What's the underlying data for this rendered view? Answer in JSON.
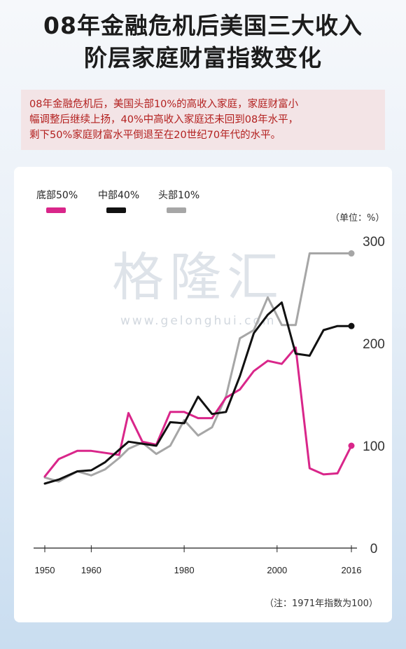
{
  "title_line1": "08年金融危机后美国三大收入",
  "title_line2": "阶层家庭财富指数变化",
  "intro_line1": "08年金融危机后，美国头部10%的高收入家庭，家庭财富小",
  "intro_line2": "幅调整后继续上扬，40%中高收入家庭还未回到08年水平，",
  "intro_line3": "剩下50%家庭财富水平倒退至在20世纪70年代的水平。",
  "unit": "（单位：%）",
  "note": "（注：1971年指数为100）",
  "watermark": "格隆汇",
  "watermark_url": "www.gelonghui.com",
  "chart_data": {
    "type": "line",
    "xlim": [
      1950,
      2016
    ],
    "ylim": [
      0,
      300
    ],
    "x_ticks": [
      1950,
      1960,
      1980,
      2000,
      2016
    ],
    "y_ticks": [
      0,
      100,
      200,
      300
    ],
    "grid": false,
    "legend_position": "top-left",
    "series": [
      {
        "name": "底部50%",
        "color": "#d9268a",
        "x": [
          1950,
          1953,
          1957,
          1960,
          1963,
          1966,
          1968,
          1971,
          1974,
          1977,
          1980,
          1983,
          1986,
          1989,
          1992,
          1995,
          1998,
          2001,
          2004,
          2007,
          2010,
          2013,
          2016
        ],
        "values": [
          70,
          87,
          95,
          95,
          93,
          91,
          132,
          104,
          101,
          133,
          133,
          127,
          127,
          147,
          155,
          173,
          183,
          180,
          196,
          78,
          72,
          73,
          100
        ]
      },
      {
        "name": "中部40%",
        "color": "#111111",
        "x": [
          1950,
          1953,
          1957,
          1960,
          1963,
          1966,
          1968,
          1971,
          1974,
          1977,
          1980,
          1983,
          1986,
          1989,
          1992,
          1995,
          1998,
          2001,
          2004,
          2007,
          2010,
          2013,
          2016
        ],
        "values": [
          63,
          67,
          75,
          76,
          84,
          96,
          104,
          102,
          100,
          123,
          122,
          148,
          131,
          133,
          168,
          210,
          228,
          240,
          190,
          188,
          213,
          217,
          217
        ]
      },
      {
        "name": "头部10%",
        "color": "#a6a6a6",
        "x": [
          1950,
          1953,
          1957,
          1960,
          1963,
          1966,
          1968,
          1971,
          1974,
          1977,
          1980,
          1983,
          1986,
          1989,
          1992,
          1995,
          1998,
          2001,
          2004,
          2007,
          2010,
          2013,
          2016
        ],
        "values": [
          69,
          65,
          75,
          71,
          77,
          88,
          97,
          103,
          92,
          100,
          125,
          110,
          118,
          148,
          205,
          213,
          245,
          218,
          218,
          288,
          288,
          288,
          288
        ]
      }
    ]
  }
}
